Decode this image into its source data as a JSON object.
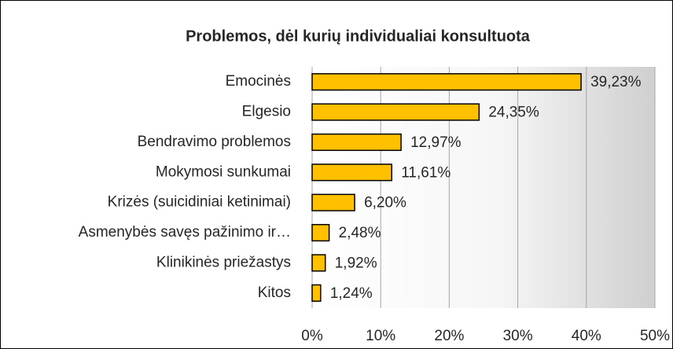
{
  "chart_data": {
    "type": "barh",
    "title": "Problemos, dėl kurių individualiai konsultuota",
    "categories": [
      "Emocinės",
      "Elgesio",
      "Bendravimo problemos",
      "Mokymosi sunkumai",
      "Krizės (suicidiniai ketinimai)",
      "Asmenybės savęs pažinimo ir…",
      "Klinikinės priežastys",
      "Kitos"
    ],
    "values": [
      39.23,
      24.35,
      12.97,
      11.61,
      6.2,
      2.48,
      1.92,
      1.24
    ],
    "value_labels": [
      "39,23%",
      "24,35%",
      "12,97%",
      "11,61%",
      "6,20%",
      "2,48%",
      "1,92%",
      "1,24%"
    ],
    "color": "#ffc000",
    "xlim": [
      0,
      50
    ],
    "xticks": [
      {
        "value": 0,
        "label": "0%"
      },
      {
        "value": 10,
        "label": "10%"
      },
      {
        "value": 20,
        "label": "20%"
      },
      {
        "value": 30,
        "label": "30%"
      },
      {
        "value": 40,
        "label": "40%"
      },
      {
        "value": 50,
        "label": "50%"
      }
    ],
    "grid": true
  }
}
